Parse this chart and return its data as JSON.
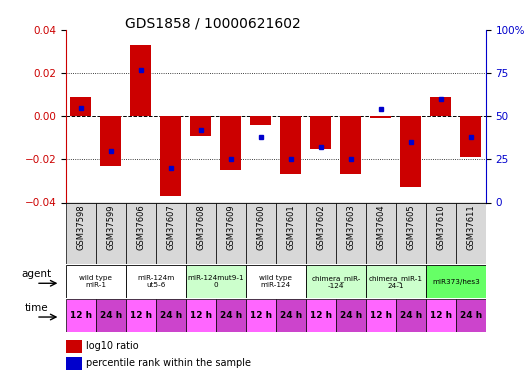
{
  "title": "GDS1858 / 10000621602",
  "samples": [
    "GSM37598",
    "GSM37599",
    "GSM37606",
    "GSM37607",
    "GSM37608",
    "GSM37609",
    "GSM37600",
    "GSM37601",
    "GSM37602",
    "GSM37603",
    "GSM37604",
    "GSM37605",
    "GSM37610",
    "GSM37611"
  ],
  "log10_ratio": [
    0.009,
    -0.023,
    0.033,
    -0.037,
    -0.009,
    -0.025,
    -0.004,
    -0.027,
    -0.015,
    -0.027,
    -0.001,
    -0.033,
    0.009,
    -0.019
  ],
  "percentile_rank": [
    55,
    30,
    77,
    20,
    42,
    25,
    38,
    25,
    32,
    25,
    54,
    35,
    60,
    38
  ],
  "agent_groups": [
    {
      "label": "wild type\nmiR-1",
      "cols": [
        0,
        1
      ],
      "color": "#ffffff"
    },
    {
      "label": "miR-124m\nut5-6",
      "cols": [
        2,
        3
      ],
      "color": "#ffffff"
    },
    {
      "label": "miR-124mut9-1\n0",
      "cols": [
        4,
        5
      ],
      "color": "#ccffcc"
    },
    {
      "label": "wild type\nmiR-124",
      "cols": [
        6,
        7
      ],
      "color": "#ffffff"
    },
    {
      "label": "chimera_miR-\n-124",
      "cols": [
        8,
        9
      ],
      "color": "#ccffcc"
    },
    {
      "label": "chimera_miR-1\n24-1",
      "cols": [
        10,
        11
      ],
      "color": "#ccffcc"
    },
    {
      "label": "miR373/hes3",
      "cols": [
        12,
        13
      ],
      "color": "#66ff66"
    }
  ],
  "time_labels": [
    "12 h",
    "24 h",
    "12 h",
    "24 h",
    "12 h",
    "24 h",
    "12 h",
    "24 h",
    "12 h",
    "24 h",
    "12 h",
    "24 h",
    "12 h",
    "24 h"
  ],
  "time_color_12": "#ff66ff",
  "time_color_24": "#cc44cc",
  "ylim_left": [
    -0.04,
    0.04
  ],
  "ylim_right": [
    0,
    100
  ],
  "yticks_left": [
    -0.04,
    -0.02,
    0,
    0.02,
    0.04
  ],
  "yticks_right": [
    0,
    25,
    50,
    75,
    100
  ],
  "bar_color": "#cc0000",
  "dot_color": "#0000cc",
  "tick_label_color_left": "#cc0000",
  "tick_label_color_right": "#0000cc",
  "agent_label_color_white": "#ffffff",
  "agent_label_color_green": "#ccffcc",
  "agent_label_color_bright_green": "#66ff66"
}
